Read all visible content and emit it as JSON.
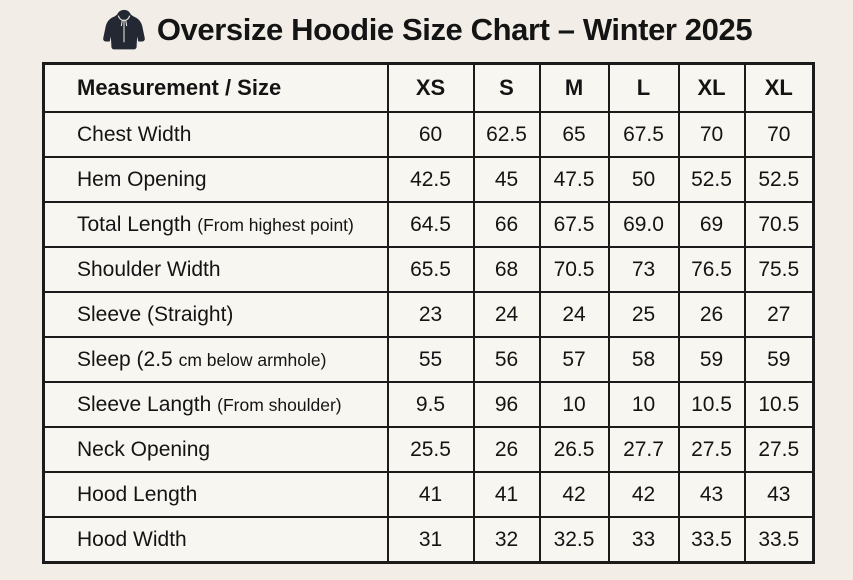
{
  "page": {
    "title": "Oversize Hoodie Size Chart – Winter 2025"
  },
  "icons": {
    "title_icon": "hoodie-icon"
  },
  "colors": {
    "page_background": "#f2eee7",
    "table_background": "#f8f6f0",
    "border": "#1b1b1b",
    "text": "#141414",
    "hoodie_icon": "#232833"
  },
  "table": {
    "columns": [
      "Measurement / Size",
      "XS",
      "S",
      "M",
      "L",
      "XL",
      "XL"
    ],
    "rows": [
      {
        "label": "Chest Width",
        "note": "",
        "values": [
          "60",
          "62.5",
          "65",
          "67.5",
          "70",
          "70"
        ]
      },
      {
        "label": "Hem Opening",
        "note": "",
        "values": [
          "42.5",
          "45",
          "47.5",
          "50",
          "52.5",
          "52.5"
        ]
      },
      {
        "label": "Total Length",
        "note": "(From highest point)",
        "values": [
          "64.5",
          "66",
          "67.5",
          "69.0",
          "69",
          "70.5"
        ]
      },
      {
        "label": "Shoulder Width",
        "note": "",
        "values": [
          "65.5",
          "68",
          "70.5",
          "73",
          "76.5",
          "75.5"
        ]
      },
      {
        "label": "Sleeve (Straight)",
        "note": "",
        "values": [
          "23",
          "24",
          "24",
          "25",
          "26",
          "27"
        ]
      },
      {
        "label": "Sleep (2.5",
        "note": "cm below armhole)",
        "values": [
          "55",
          "56",
          "57",
          "58",
          "59",
          "59"
        ]
      },
      {
        "label": "Sleeve Langth",
        "note": "(From shoulder)",
        "values": [
          "9.5",
          "96",
          "10",
          "10",
          "10.5",
          "10.5"
        ]
      },
      {
        "label": "Neck Opening",
        "note": "",
        "values": [
          "25.5",
          "26",
          "26.5",
          "27.7",
          "27.5",
          "27.5"
        ]
      },
      {
        "label": "Hood Length",
        "note": "",
        "values": [
          "41",
          "41",
          "42",
          "42",
          "43",
          "43"
        ]
      },
      {
        "label": "Hood Width",
        "note": "",
        "values": [
          "31",
          "32",
          "32.5",
          "33",
          "33.5",
          "33.5"
        ]
      }
    ]
  }
}
